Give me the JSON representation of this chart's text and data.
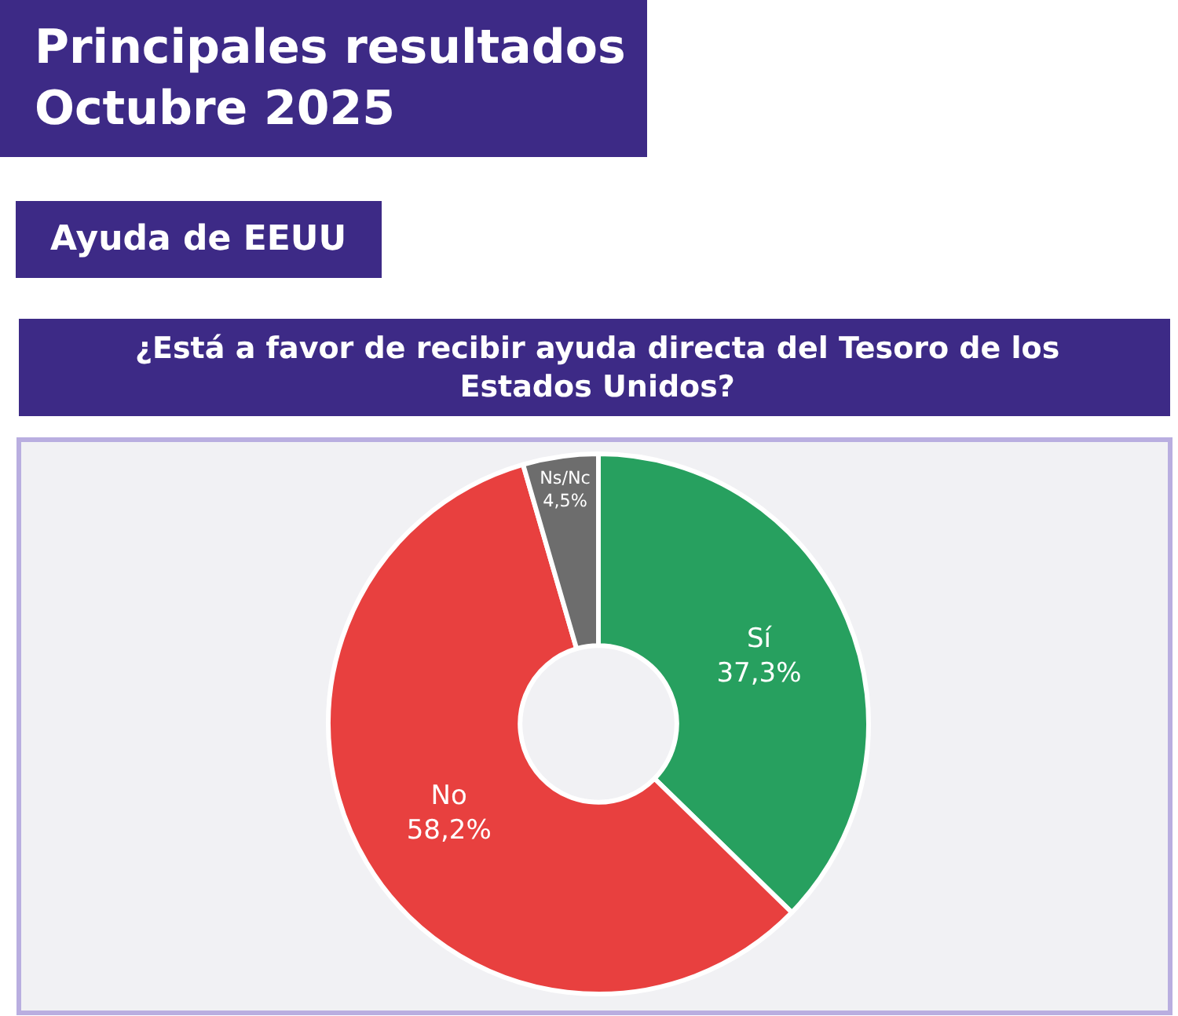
{
  "chart_data": {
    "type": "donut",
    "title": "Principales resultados\nOctubre 2025",
    "subtitle": "Ayuda de EEUU",
    "annotations": [
      "¿Está a favor de recibir ayuda directa del Tesoro de los\nEstados Unidos?"
    ],
    "categories": [
      "Sí",
      "No",
      "Ns/Nc"
    ],
    "values": [
      37.3,
      58.2,
      4.5
    ],
    "value_labels": [
      "37,3%",
      "58,2%",
      "4,5%"
    ],
    "colors": [
      "#27a05f",
      "#e8403f",
      "#6d6d6d"
    ]
  }
}
